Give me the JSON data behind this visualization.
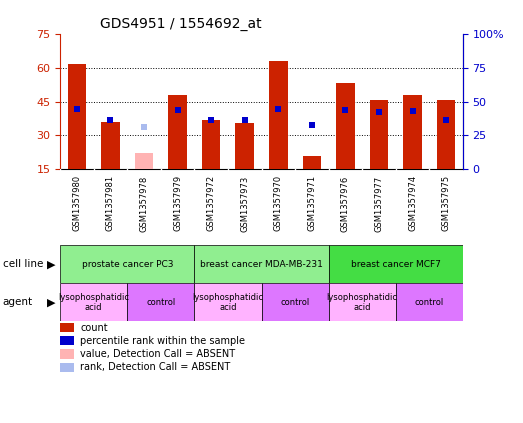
{
  "title": "GDS4951 / 1554692_at",
  "samples": [
    "GSM1357980",
    "GSM1357981",
    "GSM1357978",
    "GSM1357979",
    "GSM1357972",
    "GSM1357973",
    "GSM1357970",
    "GSM1357971",
    "GSM1357976",
    "GSM1357977",
    "GSM1357974",
    "GSM1357975"
  ],
  "counts": [
    61.5,
    36.0,
    null,
    48.0,
    37.0,
    35.5,
    63.0,
    21.0,
    53.0,
    45.5,
    48.0,
    45.5
  ],
  "absent_counts": [
    null,
    null,
    22.0,
    null,
    null,
    null,
    null,
    null,
    null,
    null,
    null,
    null
  ],
  "ranks": [
    44.5,
    36.5,
    null,
    44.0,
    36.5,
    36.0,
    44.5,
    33.0,
    44.0,
    42.0,
    43.0,
    36.5
  ],
  "absent_ranks": [
    null,
    null,
    31.5,
    null,
    null,
    null,
    null,
    null,
    null,
    null,
    null,
    null
  ],
  "cell_lines": [
    {
      "label": "prostate cancer PC3",
      "start": 0,
      "end": 3,
      "color": "#90EE90"
    },
    {
      "label": "breast cancer MDA-MB-231",
      "start": 4,
      "end": 7,
      "color": "#90EE90"
    },
    {
      "label": "breast cancer MCF7",
      "start": 8,
      "end": 11,
      "color": "#44DD44"
    }
  ],
  "agents": [
    {
      "label": "lysophosphatidic\nacid",
      "start": 0,
      "end": 1,
      "color": "#FFB3FF"
    },
    {
      "label": "control",
      "start": 2,
      "end": 3,
      "color": "#DD77FF"
    },
    {
      "label": "lysophosphatidic\nacid",
      "start": 4,
      "end": 5,
      "color": "#FFB3FF"
    },
    {
      "label": "control",
      "start": 6,
      "end": 7,
      "color": "#DD77FF"
    },
    {
      "label": "lysophosphatidic\nacid",
      "start": 8,
      "end": 9,
      "color": "#FFB3FF"
    },
    {
      "label": "control",
      "start": 10,
      "end": 11,
      "color": "#DD77FF"
    }
  ],
  "ylim_left": [
    15,
    75
  ],
  "ylim_right": [
    0,
    100
  ],
  "bar_color": "#CC2200",
  "absent_bar_color": "#FFB3B3",
  "rank_color": "#0000CC",
  "absent_rank_color": "#AABBEE",
  "left_ticks": [
    15,
    30,
    45,
    60,
    75
  ],
  "right_ticks": [
    0,
    25,
    50,
    75,
    100
  ],
  "right_tick_labels": [
    "0",
    "25",
    "50",
    "75",
    "100%"
  ],
  "grid_lines": [
    30,
    45,
    60
  ],
  "legend_items": [
    {
      "color": "#CC2200",
      "label": "count"
    },
    {
      "color": "#0000CC",
      "label": "percentile rank within the sample"
    },
    {
      "color": "#FFB3B3",
      "label": "value, Detection Call = ABSENT"
    },
    {
      "color": "#AABBEE",
      "label": "rank, Detection Call = ABSENT"
    }
  ]
}
